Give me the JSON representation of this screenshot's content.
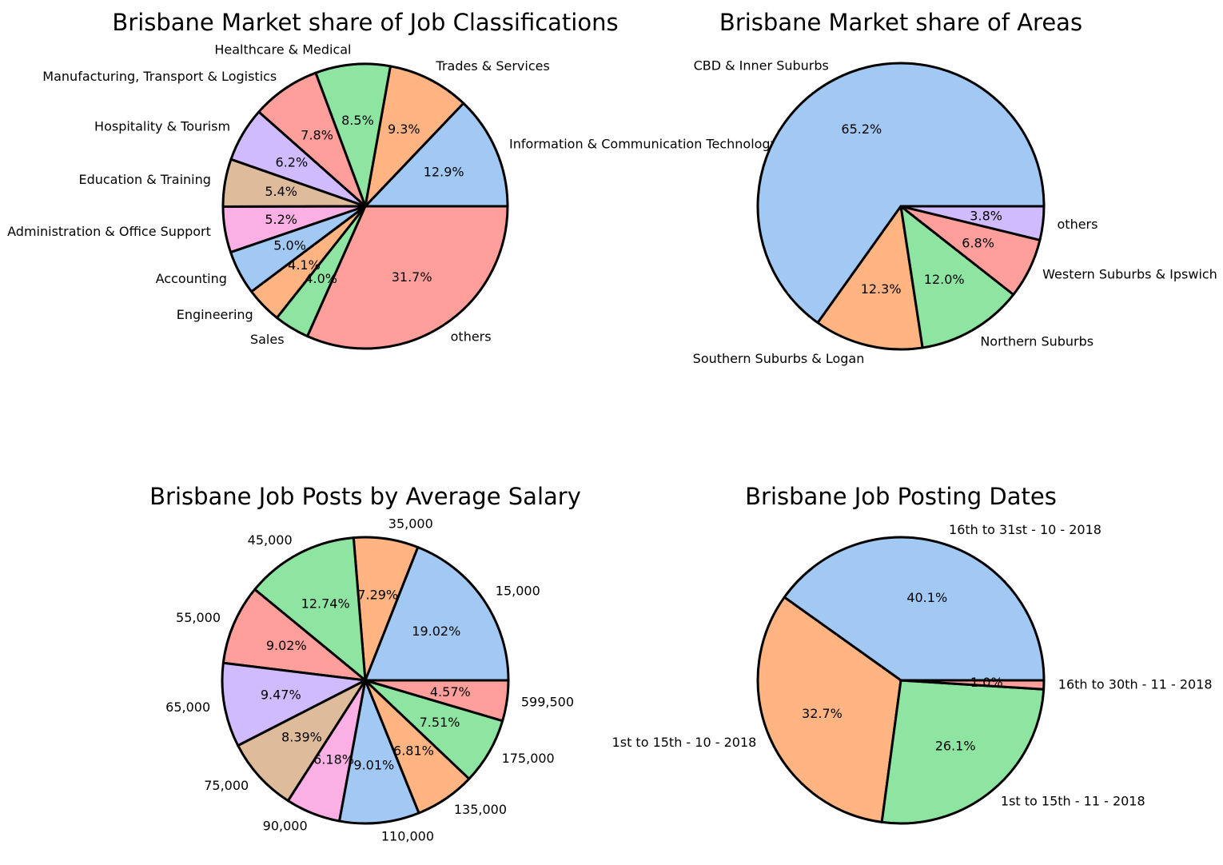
{
  "palette": [
    "#a1c9f4",
    "#ffb482",
    "#8de5a1",
    "#ff9f9b",
    "#d0bbff",
    "#debb9b",
    "#fab0e4"
  ],
  "chart_data": [
    {
      "type": "pie",
      "title": "Brisbane Market share of Job Classifications",
      "labels": [
        "Information & Communication Technology",
        "Trades & Services",
        "Healthcare & Medical",
        "Manufacturing, Transport & Logistics",
        "Hospitality & Tourism",
        "Education & Training",
        "Administration & Office Support",
        "Accounting",
        "Engineering",
        "Sales",
        "others"
      ],
      "values": [
        12.9,
        9.3,
        8.5,
        7.8,
        6.2,
        5.4,
        5.2,
        5.0,
        4.1,
        4.0,
        31.7
      ],
      "pct_labels": [
        "12.9%",
        "9.3%",
        "8.5%",
        "7.8%",
        "6.2%",
        "5.4%",
        "5.2%",
        "5.0%",
        "4.1%",
        "4.0%",
        "31.7%"
      ],
      "colors": [
        "#a1c9f4",
        "#ffb482",
        "#8de5a1",
        "#ff9f9b",
        "#d0bbff",
        "#debb9b",
        "#fab0e4",
        "#a1c9f4",
        "#ffb482",
        "#8de5a1",
        "#ff9f9b"
      ],
      "start_angle_deg": 0,
      "direction": "counterclockwise"
    },
    {
      "type": "pie",
      "title": "Brisbane Market share of Areas",
      "labels": [
        "CBD & Inner Suburbs",
        "Southern Suburbs & Logan",
        "Northern Suburbs",
        "Western Suburbs & Ipswich",
        "others"
      ],
      "values": [
        65.2,
        12.3,
        12.0,
        6.8,
        3.8
      ],
      "pct_labels": [
        "65.2%",
        "12.3%",
        "12.0%",
        "6.8%",
        "3.8%"
      ],
      "colors": [
        "#a1c9f4",
        "#ffb482",
        "#8de5a1",
        "#ff9f9b",
        "#d0bbff"
      ],
      "start_angle_deg": 0,
      "direction": "counterclockwise"
    },
    {
      "type": "pie",
      "title": "Brisbane Job Posts by Average Salary",
      "labels": [
        "15,000",
        "35,000",
        "45,000",
        "55,000",
        "65,000",
        "75,000",
        "90,000",
        "110,000",
        "135,000",
        "175,000",
        "599,500"
      ],
      "values": [
        19.02,
        7.29,
        12.74,
        9.02,
        9.47,
        8.39,
        6.18,
        9.01,
        6.81,
        7.51,
        4.57
      ],
      "pct_labels": [
        "19.02%",
        "7.29%",
        "12.74%",
        "9.02%",
        "9.47%",
        "8.39%",
        "6.18%",
        "9.01%",
        "6.81%",
        "7.51%",
        "4.57%"
      ],
      "colors": [
        "#a1c9f4",
        "#ffb482",
        "#8de5a1",
        "#ff9f9b",
        "#d0bbff",
        "#debb9b",
        "#fab0e4",
        "#a1c9f4",
        "#ffb482",
        "#8de5a1",
        "#ff9f9b"
      ],
      "start_angle_deg": 0,
      "direction": "counterclockwise"
    },
    {
      "type": "pie",
      "title": "Brisbane Job Posting Dates",
      "labels": [
        "16th to 31st - 10 - 2018",
        "1st to 15th - 10 - 2018",
        "1st to 15th - 11 - 2018",
        "16th to 30th - 11 - 2018"
      ],
      "values": [
        40.1,
        32.7,
        26.1,
        1.0
      ],
      "pct_labels": [
        "40.1%",
        "32.7%",
        "26.1%",
        "1.0%"
      ],
      "colors": [
        "#a1c9f4",
        "#ffb482",
        "#8de5a1",
        "#ff9f9b"
      ],
      "start_angle_deg": 0,
      "direction": "counterclockwise"
    }
  ]
}
